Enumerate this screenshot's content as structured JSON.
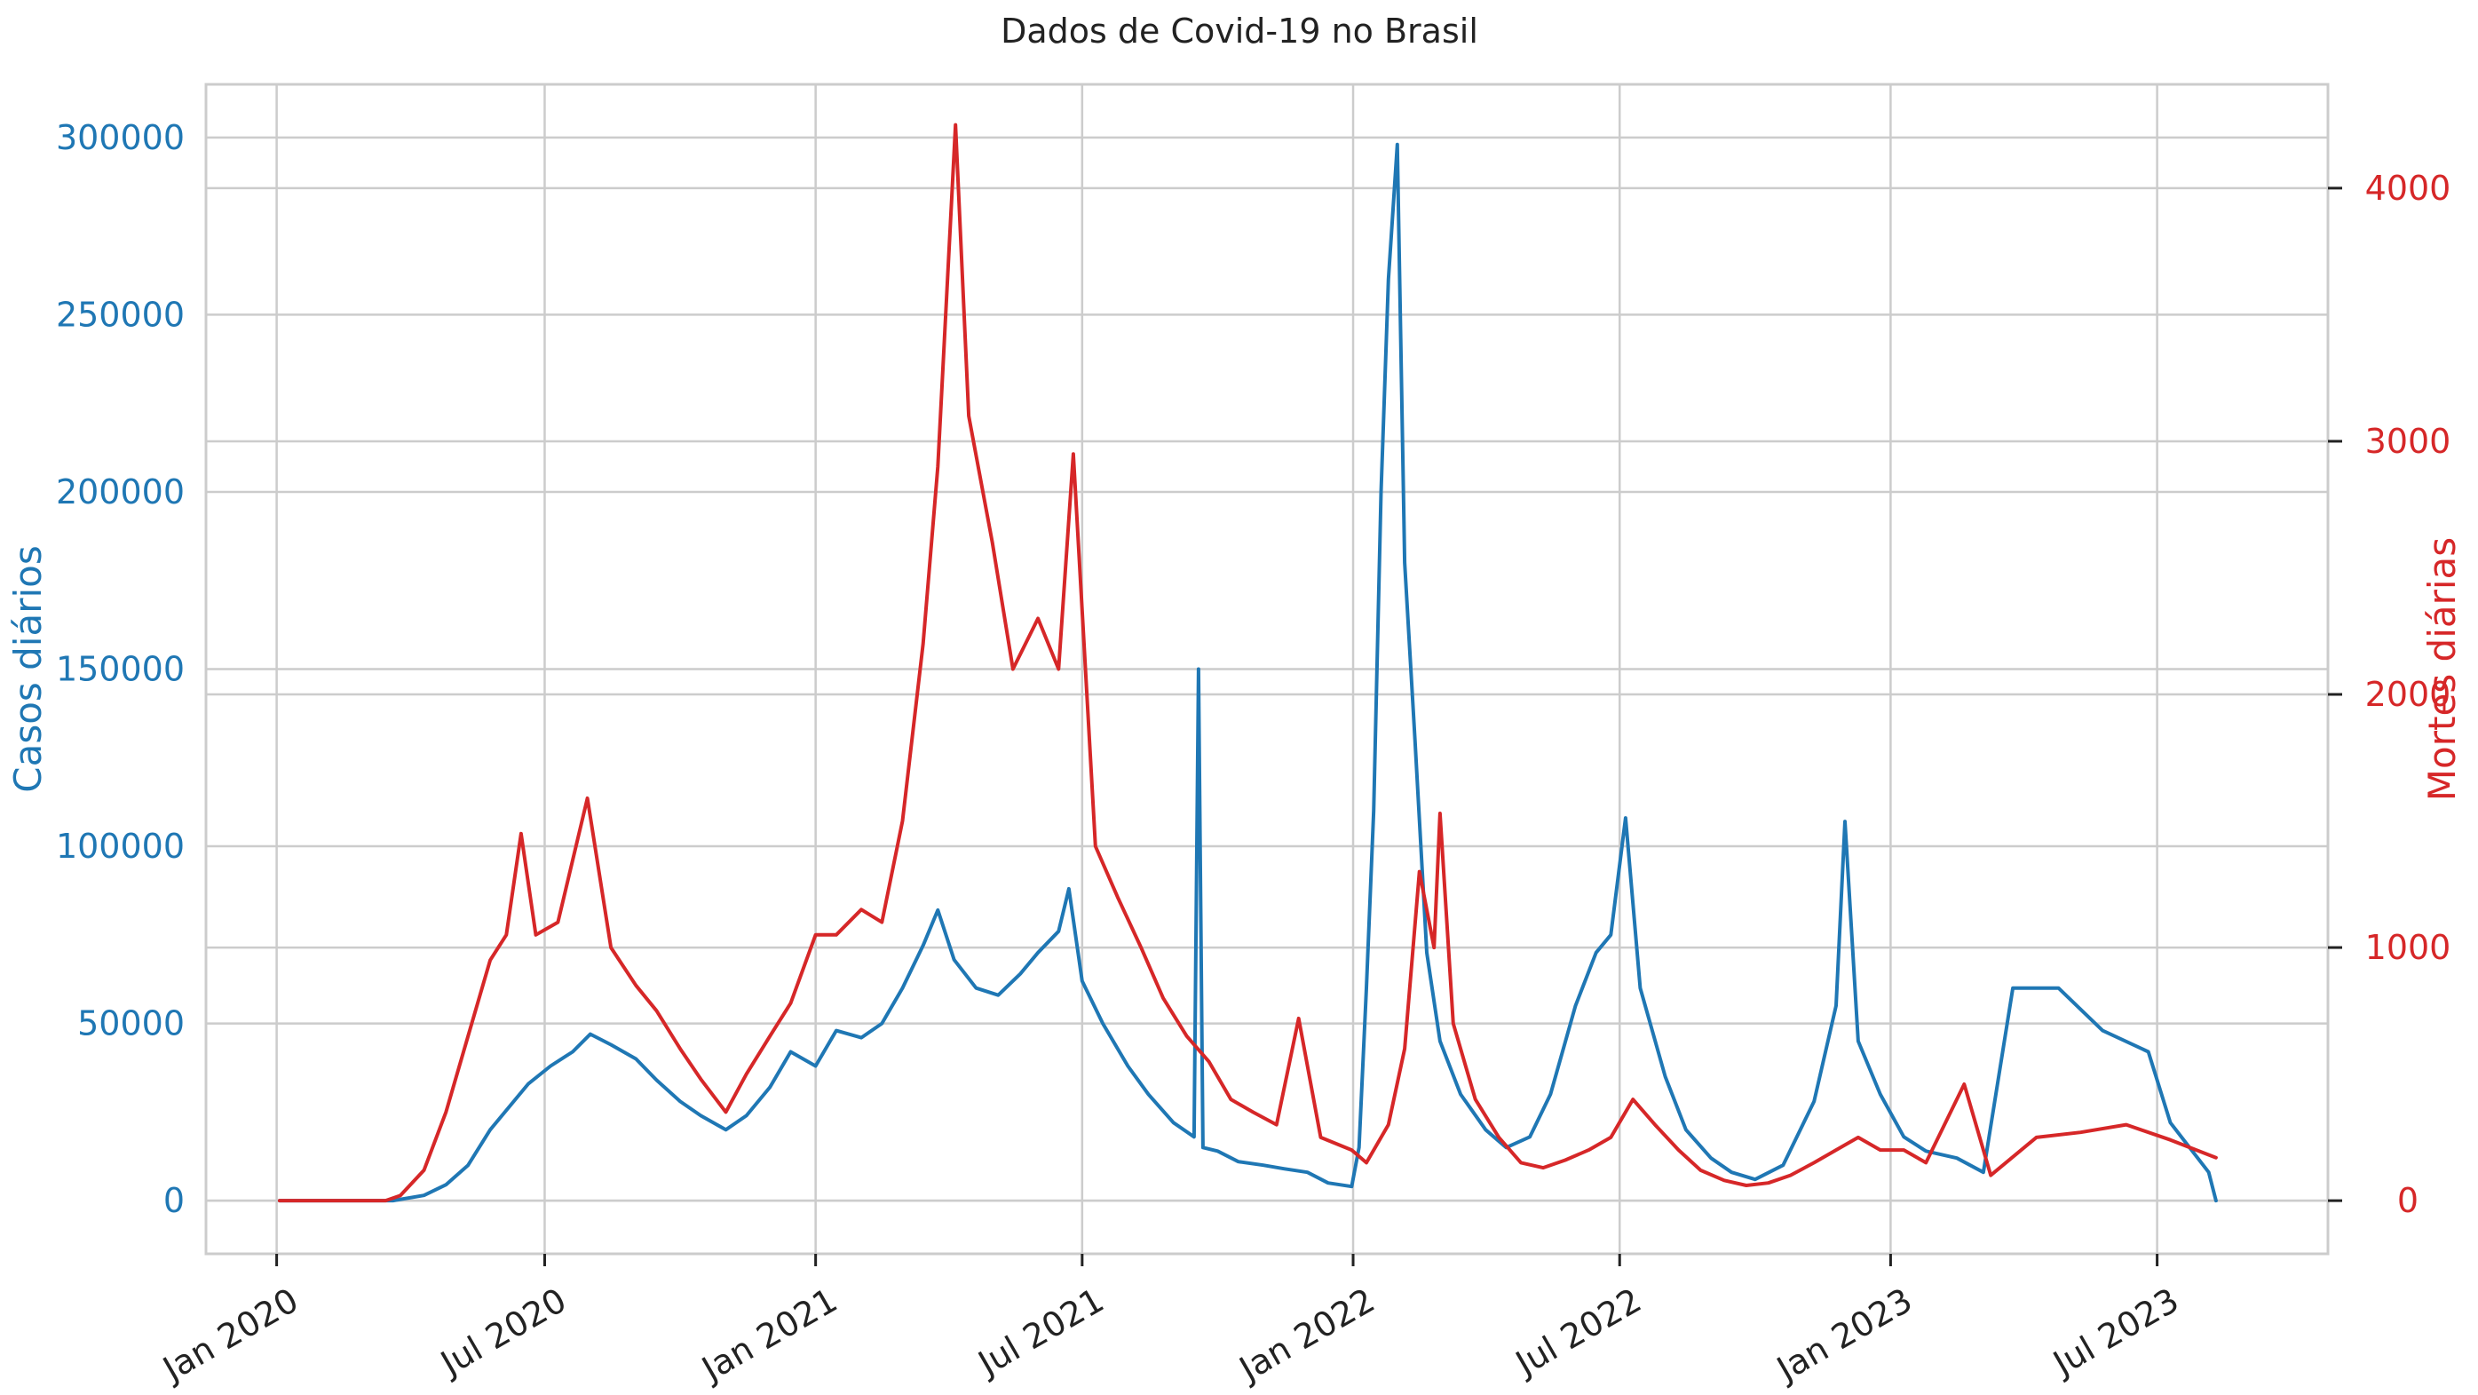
{
  "chart_data": {
    "type": "line",
    "title": "Dados de Covid-19 no Brasil",
    "grid": true,
    "x_axis": {
      "type": "date",
      "range": [
        "2019-11-14",
        "2023-10-25"
      ],
      "tick_labels": [
        {
          "date": "2020-01-01",
          "label": "Jan 2020"
        },
        {
          "date": "2020-07-01",
          "label": "Jul 2020"
        },
        {
          "date": "2021-01-01",
          "label": "Jan 2021"
        },
        {
          "date": "2021-07-01",
          "label": "Jul 2021"
        },
        {
          "date": "2022-01-01",
          "label": "Jan 2022"
        },
        {
          "date": "2022-07-01",
          "label": "Jul 2022"
        },
        {
          "date": "2023-01-01",
          "label": "Jan 2023"
        },
        {
          "date": "2023-07-01",
          "label": "Jul 2023"
        }
      ]
    },
    "y_left": {
      "label": "Casos diários",
      "color": "#1f77b4",
      "range": [
        -15000,
        315000
      ],
      "ticks": [
        0,
        50000,
        100000,
        150000,
        200000,
        250000,
        300000
      ]
    },
    "y_right": {
      "label": "Mortes diárias",
      "color": "#d62728",
      "range": [
        -210,
        4410
      ],
      "ticks": [
        0,
        1000,
        2000,
        3000,
        4000
      ]
    },
    "series": [
      {
        "axis": "left",
        "color": "#1f77b4",
        "points": [
          [
            "2020-01-03",
            0
          ],
          [
            "2020-02-25",
            0
          ],
          [
            "2020-03-20",
            0
          ],
          [
            "2020-04-10",
            1500
          ],
          [
            "2020-04-25",
            4500
          ],
          [
            "2020-05-10",
            10000
          ],
          [
            "2020-05-25",
            20000
          ],
          [
            "2020-06-10",
            28000
          ],
          [
            "2020-06-20",
            33000
          ],
          [
            "2020-07-05",
            38000
          ],
          [
            "2020-07-20",
            42000
          ],
          [
            "2020-08-01",
            47000
          ],
          [
            "2020-08-15",
            44000
          ],
          [
            "2020-09-01",
            40000
          ],
          [
            "2020-09-15",
            34000
          ],
          [
            "2020-10-01",
            28000
          ],
          [
            "2020-10-15",
            24000
          ],
          [
            "2020-11-01",
            20000
          ],
          [
            "2020-11-15",
            24000
          ],
          [
            "2020-12-01",
            32000
          ],
          [
            "2020-12-15",
            42000
          ],
          [
            "2021-01-01",
            38000
          ],
          [
            "2021-01-15",
            48000
          ],
          [
            "2021-02-01",
            46000
          ],
          [
            "2021-02-15",
            50000
          ],
          [
            "2021-03-01",
            60000
          ],
          [
            "2021-03-15",
            72000
          ],
          [
            "2021-03-25",
            82000
          ],
          [
            "2021-04-05",
            68000
          ],
          [
            "2021-04-20",
            60000
          ],
          [
            "2021-05-05",
            58000
          ],
          [
            "2021-05-20",
            64000
          ],
          [
            "2021-06-01",
            70000
          ],
          [
            "2021-06-15",
            76000
          ],
          [
            "2021-06-22",
            88000
          ],
          [
            "2021-07-01",
            62000
          ],
          [
            "2021-07-15",
            50000
          ],
          [
            "2021-08-01",
            38000
          ],
          [
            "2021-08-15",
            30000
          ],
          [
            "2021-09-01",
            22000
          ],
          [
            "2021-09-15",
            18000
          ],
          [
            "2021-09-18",
            150000
          ],
          [
            "2021-09-21",
            15000
          ],
          [
            "2021-10-01",
            14000
          ],
          [
            "2021-10-15",
            11000
          ],
          [
            "2021-11-01",
            10000
          ],
          [
            "2021-11-15",
            9000
          ],
          [
            "2021-12-01",
            8000
          ],
          [
            "2021-12-15",
            5000
          ],
          [
            "2021-12-31",
            4000
          ],
          [
            "2022-01-05",
            15000
          ],
          [
            "2022-01-10",
            60000
          ],
          [
            "2022-01-15",
            110000
          ],
          [
            "2022-01-20",
            200000
          ],
          [
            "2022-01-25",
            260000
          ],
          [
            "2022-01-31",
            298000
          ],
          [
            "2022-02-05",
            180000
          ],
          [
            "2022-02-12",
            130000
          ],
          [
            "2022-02-20",
            70000
          ],
          [
            "2022-03-01",
            45000
          ],
          [
            "2022-03-15",
            30000
          ],
          [
            "2022-04-01",
            20000
          ],
          [
            "2022-04-15",
            15000
          ],
          [
            "2022-05-01",
            18000
          ],
          [
            "2022-05-15",
            30000
          ],
          [
            "2022-06-01",
            55000
          ],
          [
            "2022-06-15",
            70000
          ],
          [
            "2022-06-25",
            75000
          ],
          [
            "2022-07-05",
            108000
          ],
          [
            "2022-07-15",
            60000
          ],
          [
            "2022-08-01",
            35000
          ],
          [
            "2022-08-15",
            20000
          ],
          [
            "2022-09-01",
            12000
          ],
          [
            "2022-09-15",
            8000
          ],
          [
            "2022-10-01",
            6000
          ],
          [
            "2022-10-20",
            10000
          ],
          [
            "2022-11-10",
            28000
          ],
          [
            "2022-11-25",
            55000
          ],
          [
            "2022-12-01",
            107000
          ],
          [
            "2022-12-10",
            45000
          ],
          [
            "2022-12-25",
            30000
          ],
          [
            "2023-01-10",
            18000
          ],
          [
            "2023-01-25",
            14000
          ],
          [
            "2023-02-15",
            12000
          ],
          [
            "2023-03-05",
            8000
          ],
          [
            "2023-03-25",
            60000
          ],
          [
            "2023-04-25",
            60000
          ],
          [
            "2023-05-25",
            48000
          ],
          [
            "2023-06-25",
            42000
          ],
          [
            "2023-07-10",
            22000
          ],
          [
            "2023-08-05",
            8000
          ],
          [
            "2023-08-10",
            0
          ]
        ]
      },
      {
        "axis": "right",
        "color": "#d62728",
        "points": [
          [
            "2020-01-03",
            0
          ],
          [
            "2020-03-15",
            0
          ],
          [
            "2020-03-25",
            20
          ],
          [
            "2020-04-10",
            120
          ],
          [
            "2020-04-25",
            350
          ],
          [
            "2020-05-10",
            650
          ],
          [
            "2020-05-25",
            950
          ],
          [
            "2020-06-05",
            1050
          ],
          [
            "2020-06-15",
            1450
          ],
          [
            "2020-06-25",
            1050
          ],
          [
            "2020-07-10",
            1100
          ],
          [
            "2020-07-30",
            1590
          ],
          [
            "2020-08-15",
            1000
          ],
          [
            "2020-09-01",
            850
          ],
          [
            "2020-09-15",
            750
          ],
          [
            "2020-10-01",
            600
          ],
          [
            "2020-10-15",
            480
          ],
          [
            "2020-11-01",
            350
          ],
          [
            "2020-11-15",
            500
          ],
          [
            "2020-12-01",
            650
          ],
          [
            "2020-12-15",
            780
          ],
          [
            "2021-01-01",
            1050
          ],
          [
            "2021-01-15",
            1050
          ],
          [
            "2021-02-01",
            1150
          ],
          [
            "2021-02-15",
            1100
          ],
          [
            "2021-03-01",
            1500
          ],
          [
            "2021-03-15",
            2200
          ],
          [
            "2021-03-25",
            2900
          ],
          [
            "2021-04-06",
            4250
          ],
          [
            "2021-04-15",
            3100
          ],
          [
            "2021-05-01",
            2600
          ],
          [
            "2021-05-15",
            2100
          ],
          [
            "2021-06-01",
            2300
          ],
          [
            "2021-06-15",
            2100
          ],
          [
            "2021-06-25",
            2950
          ],
          [
            "2021-07-10",
            1400
          ],
          [
            "2021-07-25",
            1200
          ],
          [
            "2021-08-10",
            1000
          ],
          [
            "2021-08-25",
            800
          ],
          [
            "2021-09-10",
            650
          ],
          [
            "2021-09-25",
            550
          ],
          [
            "2021-10-10",
            400
          ],
          [
            "2021-10-25",
            350
          ],
          [
            "2021-11-10",
            300
          ],
          [
            "2021-11-25",
            720
          ],
          [
            "2021-12-10",
            250
          ],
          [
            "2021-12-31",
            200
          ],
          [
            "2022-01-10",
            150
          ],
          [
            "2022-01-25",
            300
          ],
          [
            "2022-02-05",
            600
          ],
          [
            "2022-02-15",
            1300
          ],
          [
            "2022-02-25",
            1000
          ],
          [
            "2022-03-01",
            1530
          ],
          [
            "2022-03-10",
            700
          ],
          [
            "2022-03-25",
            400
          ],
          [
            "2022-04-10",
            250
          ],
          [
            "2022-04-25",
            150
          ],
          [
            "2022-05-10",
            130
          ],
          [
            "2022-05-25",
            160
          ],
          [
            "2022-06-10",
            200
          ],
          [
            "2022-06-25",
            250
          ],
          [
            "2022-07-10",
            400
          ],
          [
            "2022-07-25",
            300
          ],
          [
            "2022-08-10",
            200
          ],
          [
            "2022-08-25",
            120
          ],
          [
            "2022-09-10",
            80
          ],
          [
            "2022-09-25",
            60
          ],
          [
            "2022-10-10",
            70
          ],
          [
            "2022-10-25",
            100
          ],
          [
            "2022-11-10",
            150
          ],
          [
            "2022-11-25",
            200
          ],
          [
            "2022-12-10",
            250
          ],
          [
            "2022-12-25",
            200
          ],
          [
            "2023-01-10",
            200
          ],
          [
            "2023-01-25",
            150
          ],
          [
            "2023-02-20",
            460
          ],
          [
            "2023-03-10",
            100
          ],
          [
            "2023-04-10",
            250
          ],
          [
            "2023-05-10",
            270
          ],
          [
            "2023-06-10",
            300
          ],
          [
            "2023-07-10",
            240
          ],
          [
            "2023-08-10",
            170
          ]
        ]
      }
    ]
  }
}
